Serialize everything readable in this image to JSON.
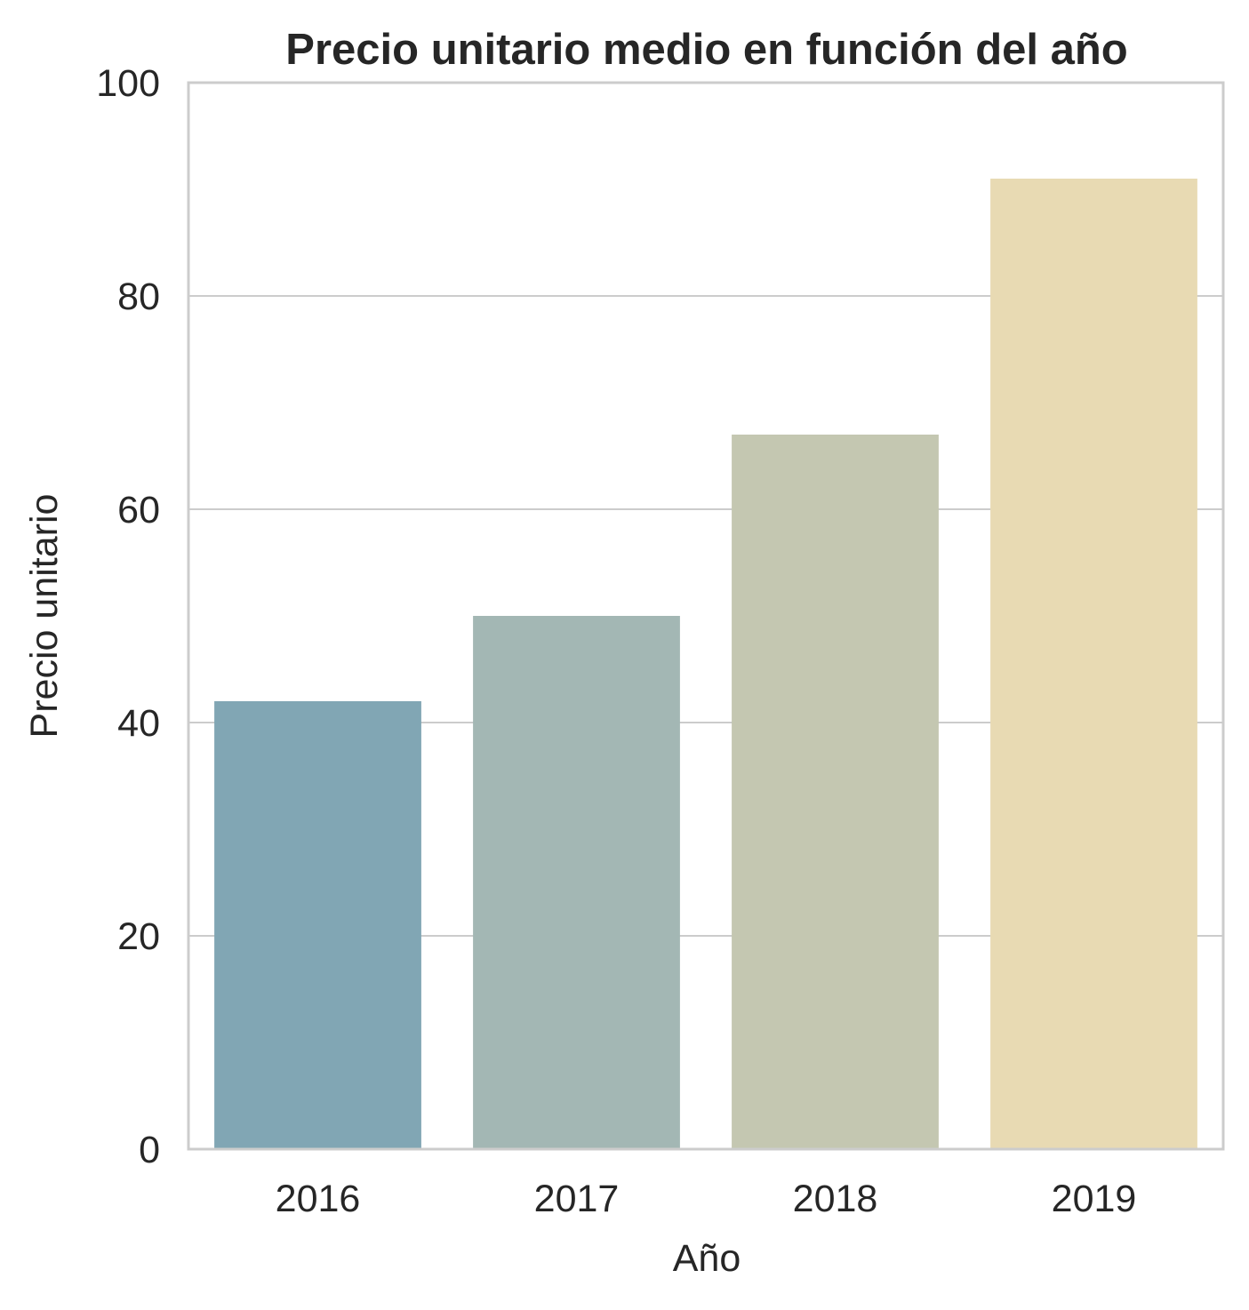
{
  "chart_data": {
    "type": "bar",
    "title": "Precio unitario medio en función del año",
    "xlabel": "Año",
    "ylabel": "Precio unitario",
    "categories": [
      "2016",
      "2017",
      "2018",
      "2019"
    ],
    "values": [
      42,
      50,
      67,
      91
    ],
    "ylim": [
      0,
      100
    ],
    "yticks": [
      "0",
      "20",
      "40",
      "60",
      "80",
      "100"
    ],
    "grid": "horizontal",
    "legend": "none",
    "colors": [
      "#81a6b4",
      "#a3b7b4",
      "#c4c7b1",
      "#e8dab3"
    ],
    "axis_color": "#cccccc",
    "grid_color": "#cccccc",
    "text_color": "#262626"
  }
}
